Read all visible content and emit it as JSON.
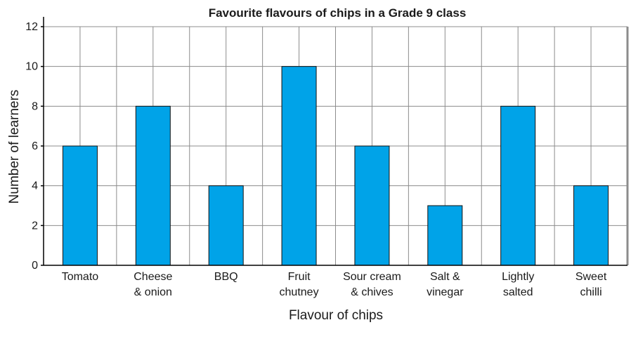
{
  "chart_data": {
    "type": "bar",
    "title": "Favourite flavours of chips in a Grade 9 class",
    "xlabel": "Flavour of chips",
    "ylabel": "Number of learners",
    "categories": [
      [
        "Tomato"
      ],
      [
        "Cheese",
        "& onion"
      ],
      [
        "BBQ"
      ],
      [
        "Fruit",
        "chutney"
      ],
      [
        "Sour cream",
        "& chives"
      ],
      [
        "Salt &",
        "vinegar"
      ],
      [
        "Lightly",
        "salted"
      ],
      [
        "Sweet",
        "chilli"
      ]
    ],
    "values": [
      6,
      8,
      4,
      10,
      6,
      3,
      8,
      4
    ],
    "ylim": [
      0,
      12
    ],
    "yticks": [
      "0",
      "2",
      "4",
      "6",
      "8",
      "10",
      "12"
    ],
    "grid": true,
    "bar_color": "#00a3e8"
  }
}
